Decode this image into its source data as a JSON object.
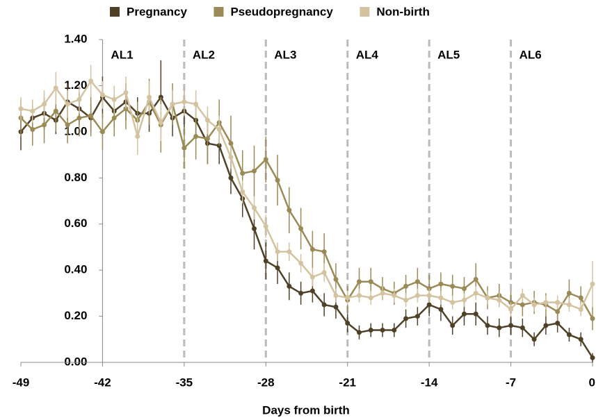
{
  "chart_data": {
    "type": "line",
    "x_label": "Days from birth",
    "x": [
      -49,
      -48,
      -47,
      -46,
      -45,
      -44,
      -43,
      -42,
      -41,
      -40,
      -39,
      -38,
      -37,
      -36,
      -35,
      -34,
      -33,
      -32,
      -31,
      -30,
      -29,
      -28,
      -27,
      -26,
      -25,
      -24,
      -23,
      -22,
      -21,
      -20,
      -19,
      -18,
      -17,
      -16,
      -15,
      -14,
      -13,
      -12,
      -11,
      -10,
      -9,
      -8,
      -7,
      -6,
      -5,
      -4,
      -3,
      -2,
      -1,
      0
    ],
    "series": [
      {
        "name": "Pregnancy",
        "color": "#4f4128",
        "values": [
          1.0,
          1.06,
          1.08,
          1.05,
          1.13,
          1.1,
          1.06,
          1.15,
          1.09,
          1.13,
          1.08,
          1.08,
          1.15,
          1.06,
          1.09,
          1.05,
          0.95,
          0.94,
          0.8,
          0.71,
          0.58,
          0.44,
          0.41,
          0.33,
          0.3,
          0.31,
          0.25,
          0.24,
          0.17,
          0.13,
          0.14,
          0.14,
          0.14,
          0.19,
          0.2,
          0.25,
          0.23,
          0.16,
          0.21,
          0.21,
          0.16,
          0.15,
          0.16,
          0.15,
          0.1,
          0.16,
          0.17,
          0.12,
          0.1,
          0.02
        ],
        "errors": [
          0.08,
          0.06,
          0.07,
          0.06,
          0.08,
          0.07,
          0.06,
          0.09,
          0.07,
          0.08,
          0.07,
          0.08,
          0.16,
          0.08,
          0.1,
          0.08,
          0.09,
          0.08,
          0.07,
          0.08,
          0.09,
          0.08,
          0.07,
          0.06,
          0.05,
          0.05,
          0.05,
          0.05,
          0.04,
          0.03,
          0.03,
          0.03,
          0.03,
          0.04,
          0.04,
          0.05,
          0.05,
          0.04,
          0.05,
          0.05,
          0.04,
          0.04,
          0.04,
          0.04,
          0.03,
          0.04,
          0.04,
          0.03,
          0.03,
          0.02
        ]
      },
      {
        "name": "Pseudopregnancy",
        "color": "#9a8a55",
        "values": [
          1.06,
          1.01,
          1.03,
          1.09,
          1.03,
          1.06,
          1.07,
          1.0,
          1.06,
          1.1,
          1.05,
          1.13,
          1.03,
          1.12,
          0.93,
          0.98,
          0.97,
          1.04,
          0.95,
          0.82,
          0.83,
          0.88,
          0.79,
          0.66,
          0.58,
          0.49,
          0.48,
          0.36,
          0.27,
          0.35,
          0.35,
          0.32,
          0.3,
          0.33,
          0.35,
          0.32,
          0.34,
          0.33,
          0.32,
          0.36,
          0.28,
          0.29,
          0.26,
          0.25,
          0.26,
          0.25,
          0.22,
          0.3,
          0.28,
          0.19
        ],
        "errors": [
          0.08,
          0.07,
          0.08,
          0.09,
          0.08,
          0.08,
          0.09,
          0.08,
          0.08,
          0.09,
          0.08,
          0.1,
          0.12,
          0.09,
          0.09,
          0.1,
          0.11,
          0.1,
          0.12,
          0.1,
          0.11,
          0.1,
          0.11,
          0.1,
          0.09,
          0.08,
          0.08,
          0.07,
          0.06,
          0.06,
          0.06,
          0.05,
          0.05,
          0.05,
          0.06,
          0.06,
          0.05,
          0.05,
          0.05,
          0.07,
          0.05,
          0.05,
          0.05,
          0.05,
          0.05,
          0.05,
          0.04,
          0.06,
          0.05,
          0.05
        ]
      },
      {
        "name": "Non-birth",
        "color": "#d4c3a0",
        "values": [
          1.1,
          1.09,
          1.12,
          1.19,
          1.12,
          1.14,
          1.22,
          1.16,
          1.14,
          1.17,
          0.98,
          1.15,
          1.04,
          1.12,
          1.13,
          1.12,
          1.05,
          1.01,
          0.89,
          0.74,
          0.67,
          0.59,
          0.48,
          0.48,
          0.43,
          0.37,
          0.39,
          0.29,
          0.28,
          0.29,
          0.28,
          0.3,
          0.29,
          0.27,
          0.29,
          0.29,
          0.28,
          0.26,
          0.27,
          0.3,
          0.28,
          0.27,
          0.23,
          0.29,
          0.25,
          0.26,
          0.26,
          0.25,
          0.23,
          0.34
        ],
        "errors": [
          0.05,
          0.05,
          0.06,
          0.07,
          0.06,
          0.06,
          0.07,
          0.06,
          0.06,
          0.07,
          0.08,
          0.07,
          0.08,
          0.06,
          0.06,
          0.06,
          0.06,
          0.06,
          0.05,
          0.05,
          0.05,
          0.05,
          0.04,
          0.04,
          0.04,
          0.04,
          0.04,
          0.03,
          0.03,
          0.03,
          0.03,
          0.03,
          0.03,
          0.03,
          0.03,
          0.03,
          0.03,
          0.03,
          0.03,
          0.03,
          0.03,
          0.03,
          0.03,
          0.03,
          0.03,
          0.03,
          0.03,
          0.03,
          0.03,
          0.1
        ]
      }
    ],
    "phases": [
      {
        "label": "AL1",
        "start": -42
      },
      {
        "label": "AL2",
        "start": -35
      },
      {
        "label": "AL3",
        "start": -28
      },
      {
        "label": "AL4",
        "start": -21
      },
      {
        "label": "AL5",
        "start": -14
      },
      {
        "label": "AL6",
        "start": -7
      }
    ],
    "y_axis_at": -42,
    "xlim": [
      -49,
      0
    ],
    "xticks": [
      -49,
      -42,
      -35,
      -28,
      -21,
      -14,
      -7,
      0
    ],
    "ylim": [
      0,
      1.4
    ],
    "yticks": [
      {
        "value": 0,
        "label": "0.00"
      },
      {
        "value": 0.2,
        "label": "0.20"
      },
      {
        "value": 0.4,
        "label": "0.40"
      },
      {
        "value": 0.6,
        "label": "0.60"
      },
      {
        "value": 0.8,
        "label": "0.80"
      },
      {
        "value": 1.0,
        "label": "1.00"
      },
      {
        "value": 1.2,
        "label": "1.20"
      },
      {
        "value": 1.4,
        "label": "1.40"
      }
    ],
    "legend": "top"
  }
}
